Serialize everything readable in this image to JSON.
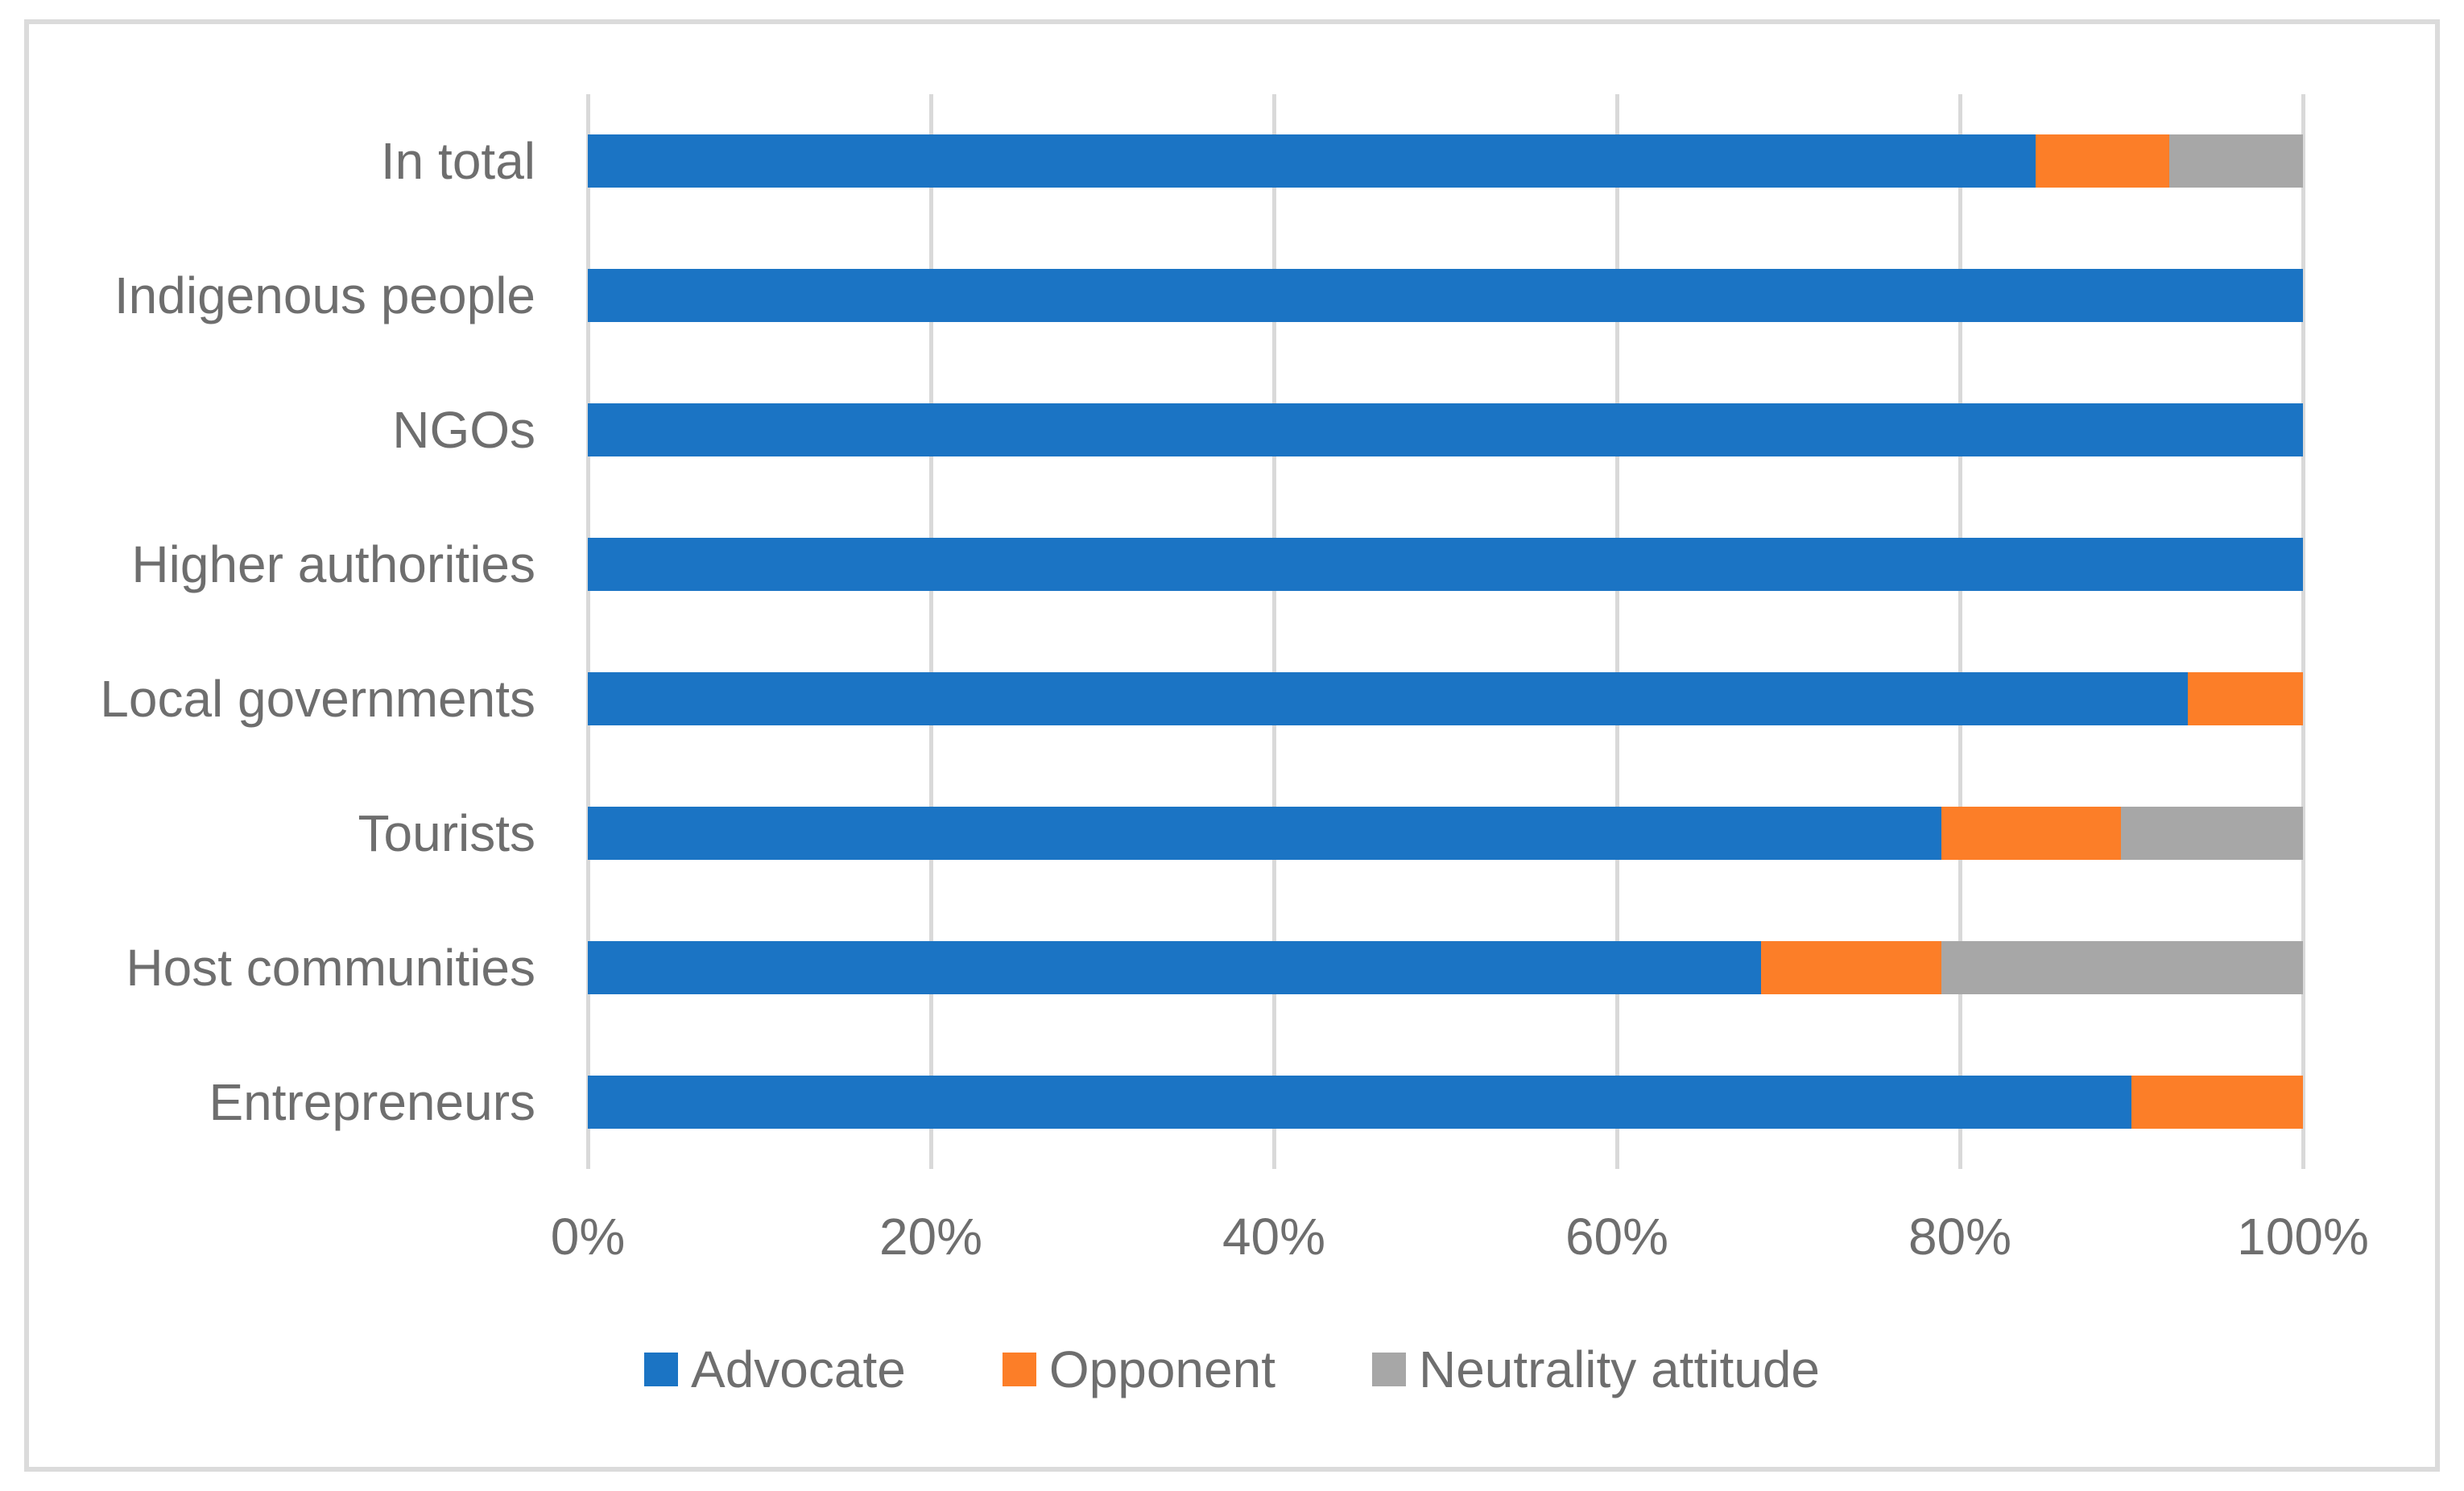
{
  "chart_data": {
    "type": "bar",
    "variant": "horizontal-stacked",
    "title": "",
    "xlabel": "",
    "ylabel": "",
    "xlim": [
      0,
      100
    ],
    "x_ticks": [
      "0%",
      "20%",
      "40%",
      "60%",
      "80%",
      "100%"
    ],
    "grid": "vertical",
    "legend_position": "bottom",
    "categories": [
      "In total",
      "Indigenous people",
      "NGOs",
      "Higher authorities",
      "Local governments",
      "Tourists",
      "Host communities",
      "Entrepreneurs"
    ],
    "series": [
      {
        "name": "Advocate",
        "color": "#1B74C4",
        "values": [
          84.4,
          100,
          100,
          100,
          93.3,
          78.9,
          68.4,
          90.0
        ]
      },
      {
        "name": "Opponent",
        "color": "#FC7E28",
        "values": [
          7.8,
          0,
          0,
          0,
          6.7,
          10.5,
          10.5,
          10.0
        ]
      },
      {
        "name": "Neutrality attitude",
        "color": "#A7A7A7",
        "values": [
          7.8,
          0,
          0,
          0,
          0.0,
          10.6,
          21.1,
          0.0
        ]
      }
    ]
  },
  "style_colors": {
    "gridline": "#D9D9D9",
    "chart_border": "#DBDBDB",
    "label_text": "#6E6E6E"
  }
}
